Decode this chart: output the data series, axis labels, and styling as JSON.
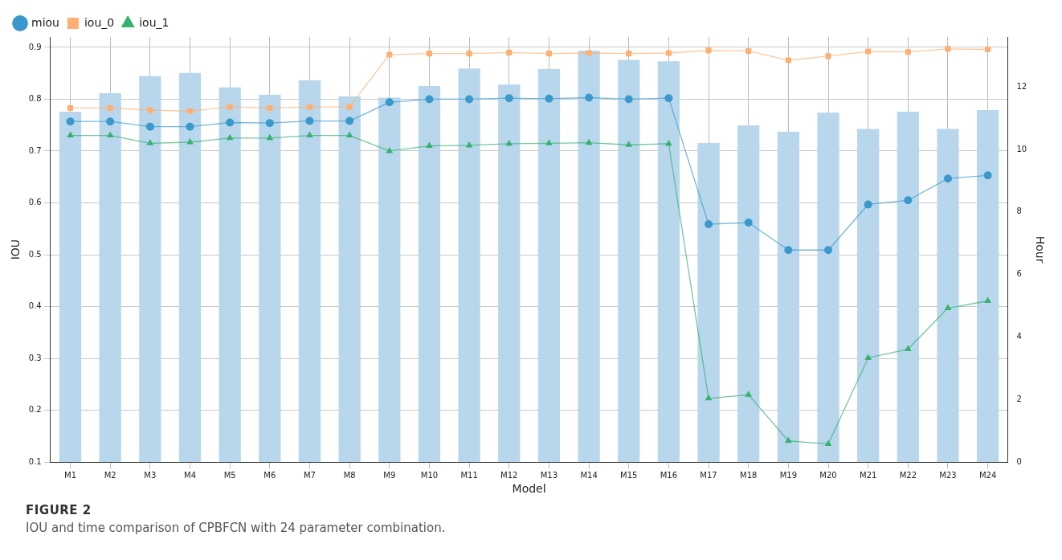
{
  "chart_data": {
    "type": "line",
    "xlabel": "Model",
    "ylabel": "IOU",
    "y2label": "Hour",
    "categories": [
      "M1",
      "M2",
      "M3",
      "M4",
      "M5",
      "M6",
      "M7",
      "M8",
      "M9",
      "M10",
      "M11",
      "M12",
      "M13",
      "M14",
      "M15",
      "M16",
      "M17",
      "M18",
      "M19",
      "M20",
      "M21",
      "M22",
      "M23",
      "M24"
    ],
    "series": [
      {
        "type": "bar",
        "axis": "y2",
        "color": "#b9d7ec",
        "values": [
          11.21,
          11.8,
          12.35,
          12.45,
          11.99,
          11.75,
          12.21,
          11.7,
          11.66,
          12.03,
          12.59,
          12.08,
          12.57,
          13.16,
          12.87,
          12.82,
          10.21,
          10.77,
          10.57,
          11.18,
          10.66,
          11.21,
          10.66,
          11.26
        ]
      },
      {
        "name": "miou",
        "color": "#3a98cc",
        "marker": "circle",
        "values": [
          0.757,
          0.757,
          0.747,
          0.747,
          0.755,
          0.754,
          0.758,
          0.758,
          0.794,
          0.8,
          0.8,
          0.802,
          0.801,
          0.803,
          0.8,
          0.802,
          0.559,
          0.562,
          0.509,
          0.509,
          0.597,
          0.605,
          0.647,
          0.653
        ]
      },
      {
        "name": "iou_0",
        "color": "#ffae72",
        "marker": "square",
        "values": [
          0.783,
          0.783,
          0.779,
          0.777,
          0.785,
          0.783,
          0.785,
          0.785,
          0.886,
          0.888,
          0.888,
          0.89,
          0.888,
          0.889,
          0.888,
          0.889,
          0.894,
          0.893,
          0.875,
          0.883,
          0.892,
          0.891,
          0.897,
          0.896
        ]
      },
      {
        "name": "iou_1",
        "color": "#36b071",
        "marker": "triangle",
        "values": [
          0.73,
          0.73,
          0.715,
          0.717,
          0.725,
          0.725,
          0.73,
          0.73,
          0.7,
          0.71,
          0.711,
          0.714,
          0.715,
          0.716,
          0.712,
          0.714,
          0.223,
          0.23,
          0.141,
          0.135,
          0.301,
          0.318,
          0.397,
          0.411
        ]
      }
    ],
    "ylim": [
      0.1,
      0.92
    ],
    "yticks": [
      0.1,
      0.2,
      0.3,
      0.4,
      0.5,
      0.6,
      0.7,
      0.8,
      0.9
    ],
    "y2lim": [
      0,
      13.6
    ],
    "y2ticks": [
      0,
      2,
      4,
      6,
      8,
      10,
      12
    ],
    "grid": true,
    "legend": "top left",
    "annotations": [
      "FIGURE 2",
      "IOU and time comparison of CPBFCN with 24 parameter combination."
    ]
  }
}
